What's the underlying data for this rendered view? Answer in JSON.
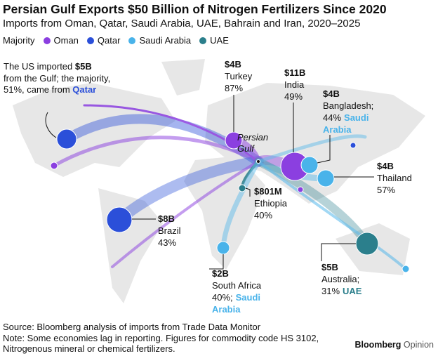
{
  "title": "Persian Gulf Exports $50 Billion of Nitrogen Fertilizers Since 2020",
  "subtitle": "Imports from Oman, Qatar, Saudi Arabia, UAE, Bahrain and Iran, 2020–2025",
  "legend": {
    "label": "Majority",
    "items": [
      {
        "name": "Oman",
        "color": "#8b3fe0"
      },
      {
        "name": "Qatar",
        "color": "#2b4fd9"
      },
      {
        "name": "Saudi Arabia",
        "color": "#49b3ea"
      },
      {
        "name": "UAE",
        "color": "#2b7f8c"
      }
    ]
  },
  "hub_label": "Persian Gulf",
  "us_note": {
    "line1": "The US imported",
    "amount": "$5B",
    "line2": "from the Gulf; the majority,",
    "line3": "51%, came from",
    "majority": "Qatar"
  },
  "annotations": [
    {
      "amount": "$4B",
      "place": "Turkey",
      "share": "87%"
    },
    {
      "amount": "$11B",
      "place": "India",
      "share": "49%"
    },
    {
      "amount": "$4B",
      "place": "Bangladesh;",
      "share": "44%",
      "majority": "Saudi Arabia"
    },
    {
      "amount": "$4B",
      "place": "Thailand",
      "share": "57%"
    },
    {
      "amount": "$8B",
      "place": "Brazil",
      "share": "43%"
    },
    {
      "amount": "$801M",
      "place": "Ethiopia",
      "share": "40%"
    },
    {
      "amount": "$2B",
      "place": "South Africa",
      "share": "40%;",
      "majority": "Saudi Arabia"
    },
    {
      "amount": "$5B",
      "place": "Australia;",
      "share": "31%",
      "majority": "UAE"
    }
  ],
  "source": "Source: Bloomberg analysis of imports from Trade Data Monitor",
  "note": "Note: Some economies lag in reporting. Figures for commodity code HS 3102, Nitrogenous mineral or chemical fertilizers.",
  "logo": {
    "brand": "Bloomberg",
    "product": "Opinion"
  }
}
